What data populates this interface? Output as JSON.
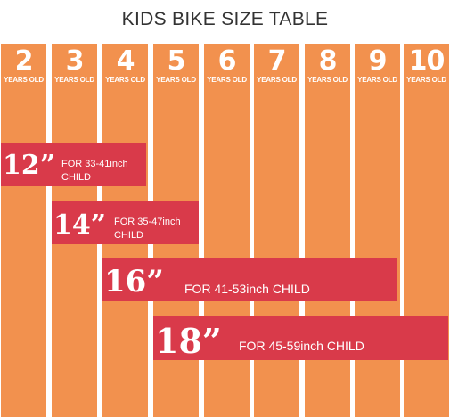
{
  "title": "KIDS BIKE SIZE TABLE",
  "colors": {
    "column": "#F2914E",
    "band": "#D93A4A",
    "title": "#333333"
  },
  "age_unit": "YEARS OLD",
  "ages": [
    "2",
    "3",
    "4",
    "5",
    "6",
    "7",
    "8",
    "9",
    "10"
  ],
  "bands": [
    {
      "size": "12”",
      "line1": "FOR 33-41inch",
      "line2": "CHILD"
    },
    {
      "size": "14”",
      "line1": "FOR 35-47inch",
      "line2": "CHILD"
    },
    {
      "size": "16”",
      "line1": "FOR 41-53inch CHILD",
      "line2": ""
    },
    {
      "size": "18”",
      "line1": "FOR 45-59inch CHILD",
      "line2": ""
    }
  ]
}
